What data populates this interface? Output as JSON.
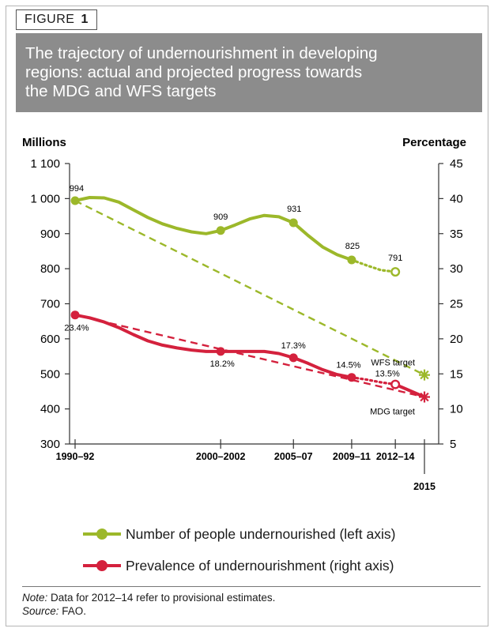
{
  "figure": {
    "label": "FIGURE",
    "number": "1"
  },
  "title_lines": [
    "The trajectory of undernourishment in developing",
    "regions: actual and projected progress towards",
    "the MDG and WFS targets"
  ],
  "colors": {
    "green": "#9cb82a",
    "red": "#d4213d",
    "title_bg": "#8c8c8c"
  },
  "chart_data": {
    "type": "line",
    "title": "The trajectory of undernourishment in developing regions: actual and projected progress towards the MDG and WFS targets",
    "x_tick_labels": [
      "1990–92",
      "2000–2002",
      "2005–07",
      "2009–11",
      "2012–14",
      "2015"
    ],
    "x_tick_years": [
      1991,
      2001,
      2006,
      2010,
      2013,
      2015
    ],
    "x_range": [
      1991,
      2015
    ],
    "left_axis": {
      "label": "Millions",
      "range": [
        300,
        1100
      ],
      "ticks": [
        300,
        400,
        500,
        600,
        700,
        800,
        900,
        1000,
        1100
      ],
      "tick_labels": [
        "300",
        "400",
        "500",
        "600",
        "700",
        "800",
        "900",
        "1 000",
        "1 100"
      ]
    },
    "right_axis": {
      "label": "Percentage",
      "range": [
        5,
        45
      ],
      "ticks": [
        5,
        10,
        15,
        20,
        25,
        30,
        35,
        40,
        45
      ],
      "tick_labels": [
        "5",
        "10",
        "15",
        "20",
        "25",
        "30",
        "35",
        "40",
        "45"
      ]
    },
    "series": [
      {
        "name": "Number of people undernourished (left axis)",
        "axis": "left",
        "color": "#9cb82a",
        "actual": [
          [
            1991,
            994
          ],
          [
            1992,
            1003
          ],
          [
            1993,
            1002
          ],
          [
            1994,
            990
          ],
          [
            1995,
            968
          ],
          [
            1996,
            946
          ],
          [
            1997,
            928
          ],
          [
            1998,
            915
          ],
          [
            1999,
            905
          ],
          [
            2000,
            900
          ],
          [
            2001,
            909
          ],
          [
            2002,
            925
          ],
          [
            2003,
            942
          ],
          [
            2004,
            952
          ],
          [
            2005,
            948
          ],
          [
            2006,
            931
          ],
          [
            2007,
            895
          ],
          [
            2008,
            862
          ],
          [
            2009,
            840
          ],
          [
            2010,
            825
          ]
        ],
        "projected": [
          [
            2010,
            825
          ],
          [
            2011,
            810
          ],
          [
            2012,
            796
          ],
          [
            2013,
            791
          ]
        ],
        "markers": [
          [
            1991,
            994
          ],
          [
            2001,
            909
          ],
          [
            2006,
            931
          ],
          [
            2010,
            825
          ]
        ],
        "open_markers": [
          [
            2013,
            791
          ]
        ],
        "data_labels": [
          {
            "x": 1991,
            "y": 994,
            "text": "994"
          },
          {
            "x": 2001,
            "y": 909,
            "text": "909"
          },
          {
            "x": 2006,
            "y": 931,
            "text": "931"
          },
          {
            "x": 2010,
            "y": 825,
            "text": "825"
          },
          {
            "x": 2013,
            "y": 791,
            "text": "791"
          }
        ],
        "target_line": [
          [
            1991,
            994
          ],
          [
            2015,
            497
          ]
        ],
        "target": {
          "x": 2015,
          "y": 497,
          "label": "WFS target"
        }
      },
      {
        "name": "Prevalence of undernourishment (right axis)",
        "axis": "right",
        "color": "#d4213d",
        "actual": [
          [
            1991,
            23.4
          ],
          [
            1992,
            23.0
          ],
          [
            1993,
            22.4
          ],
          [
            1994,
            21.6
          ],
          [
            1995,
            20.6
          ],
          [
            1996,
            19.7
          ],
          [
            1997,
            19.1
          ],
          [
            1998,
            18.7
          ],
          [
            1999,
            18.4
          ],
          [
            2000,
            18.2
          ],
          [
            2001,
            18.2
          ],
          [
            2002,
            18.2
          ],
          [
            2003,
            18.2
          ],
          [
            2004,
            18.2
          ],
          [
            2005,
            17.9
          ],
          [
            2006,
            17.3
          ],
          [
            2007,
            16.5
          ],
          [
            2008,
            15.6
          ],
          [
            2009,
            14.9
          ],
          [
            2010,
            14.5
          ]
        ],
        "projected": [
          [
            2010,
            14.5
          ],
          [
            2011,
            14.2
          ],
          [
            2012,
            13.8
          ],
          [
            2013,
            13.5
          ]
        ],
        "markers": [
          [
            1991,
            23.4
          ],
          [
            2001,
            18.2
          ],
          [
            2006,
            17.3
          ],
          [
            2010,
            14.5
          ]
        ],
        "open_markers": [
          [
            2013,
            13.5
          ]
        ],
        "data_labels": [
          {
            "x": 1991,
            "y": 23.4,
            "text": "23.4%"
          },
          {
            "x": 2001,
            "y": 18.2,
            "text": "18.2%"
          },
          {
            "x": 2006,
            "y": 17.3,
            "text": "17.3%"
          },
          {
            "x": 2010,
            "y": 14.5,
            "text": "14.5%"
          },
          {
            "x": 2013,
            "y": 13.5,
            "text": "13.5%"
          }
        ],
        "target_line": [
          [
            1991,
            23.4
          ],
          [
            2015,
            11.7
          ]
        ],
        "extension_line": [
          [
            2013,
            13.5
          ],
          [
            2015,
            11.7
          ]
        ],
        "target": {
          "x": 2015,
          "y": 11.7,
          "label": "MDG target"
        }
      }
    ],
    "legend_position": "bottom"
  },
  "legend": [
    {
      "label": "Number of people undernourished (left axis)"
    },
    {
      "label": "Prevalence of undernourishment (right axis)"
    }
  ],
  "notes": {
    "note_label": "Note:",
    "note_text": " Data for 2012–14 refer to provisional estimates.",
    "source_label": "Source:",
    "source_text": " FAO."
  }
}
